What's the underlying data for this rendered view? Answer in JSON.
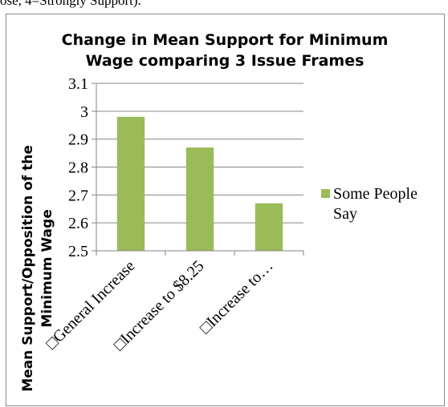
{
  "page": {
    "top_text": "ose, 4=Strongly Support)."
  },
  "chart_data": {
    "type": "bar",
    "title": [
      "Change in Mean Support for Minimum",
      "Wage comparing 3 Issue Frames"
    ],
    "ylabel": [
      "Mean Support/Opposition of the",
      "Minimum Wage"
    ],
    "xlabel": "",
    "categories": [
      "□General Increase",
      "□Increase to $8.25",
      "□Increase to…"
    ],
    "series": [
      {
        "name": "Some People Say",
        "values": [
          2.98,
          2.87,
          2.67
        ]
      }
    ],
    "ylim": [
      2.5,
      3.1
    ],
    "yticks": [
      2.5,
      2.6,
      2.7,
      2.8,
      2.9,
      3,
      3.1
    ],
    "ytick_labels": [
      "2.5",
      "2.6",
      "2.7",
      "2.8",
      "2.9",
      "3",
      "3.1"
    ],
    "grid": true,
    "legend": {
      "position": "right",
      "label_lines": [
        "Some People",
        "Say"
      ]
    },
    "colors": {
      "bar": "#9bbb59",
      "grid": "#868686",
      "axis": "#868686",
      "text": "#000000"
    }
  }
}
